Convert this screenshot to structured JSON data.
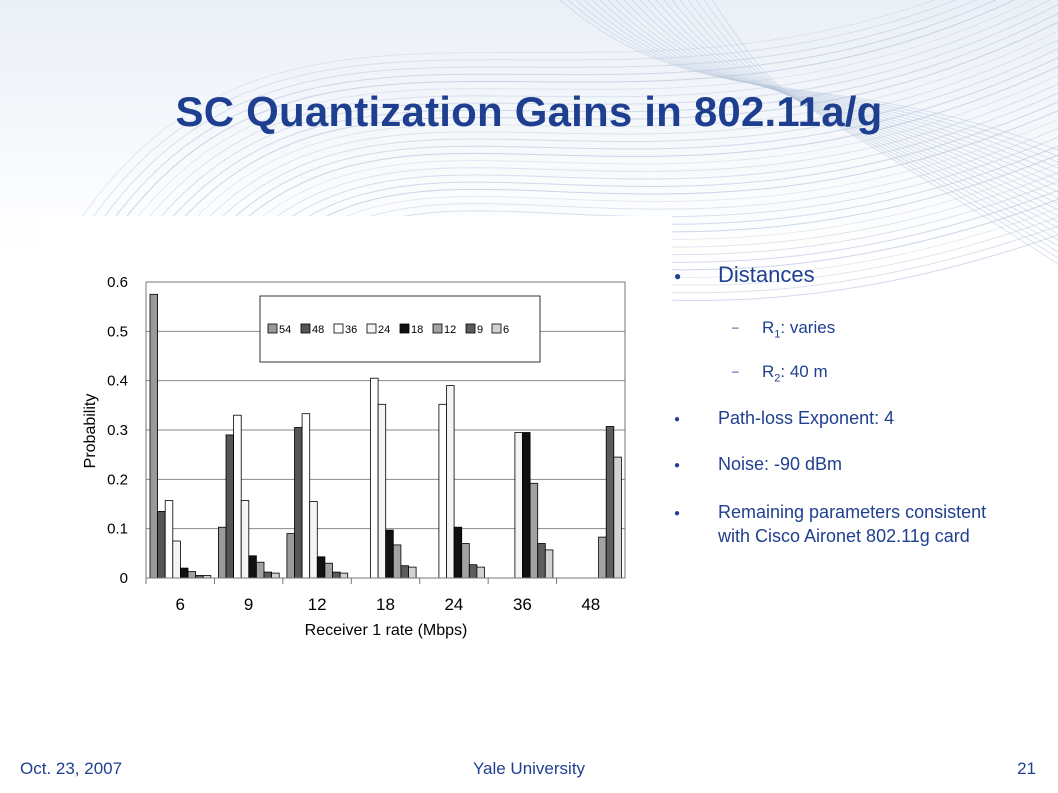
{
  "slide": {
    "title": "SC Quantization Gains in 802.11a/g",
    "footer_left": "Oct. 23, 2007",
    "footer_center": "Yale University",
    "footer_right": "21"
  },
  "bullets": {
    "distances": "Distances",
    "r1_label": "R",
    "r1_sub": "1",
    "r1_value": ": varies",
    "r2_label": "R",
    "r2_sub": "2",
    "r2_value": ": 40 m",
    "pathloss": "Path-loss Exponent: 4",
    "noise": "Noise: -90 dBm",
    "remaining": "Remaining parameters consistent with Cisco Aironet 802.11g card"
  },
  "chart_data": {
    "type": "bar",
    "categories": [
      "6",
      "9",
      "12",
      "18",
      "24",
      "36",
      "48"
    ],
    "xlabel": "Receiver 1 rate (Mbps)",
    "ylabel": "Probability",
    "ylim": [
      0,
      0.6
    ],
    "yticks": [
      "0",
      "0.1",
      "0.2",
      "0.3",
      "0.4",
      "0.5",
      "0.6"
    ],
    "grid": true,
    "legend_position": "top",
    "series": [
      {
        "name": "54",
        "color": "#9a9a9a",
        "values": [
          0.575,
          0.103,
          0.09,
          0,
          0,
          0,
          0
        ]
      },
      {
        "name": "48",
        "color": "#555555",
        "values": [
          0.135,
          0.29,
          0.305,
          0,
          0,
          0,
          0
        ]
      },
      {
        "name": "36",
        "color": "#ffffff",
        "values": [
          0.157,
          0.33,
          0.333,
          0.405,
          0.352,
          0,
          0
        ]
      },
      {
        "name": "24",
        "color": "#f4f4f4",
        "values": [
          0.075,
          0.157,
          0.155,
          0.352,
          0.39,
          0.295,
          0
        ]
      },
      {
        "name": "18",
        "color": "#111111",
        "values": [
          0.02,
          0.045,
          0.043,
          0.097,
          0.103,
          0.295,
          0
        ]
      },
      {
        "name": "12",
        "color": "#a2a2a2",
        "values": [
          0.013,
          0.032,
          0.03,
          0.067,
          0.07,
          0.192,
          0.083
        ]
      },
      {
        "name": "9",
        "color": "#5c5c5c",
        "values": [
          0.005,
          0.012,
          0.012,
          0.025,
          0.027,
          0.07,
          0.307
        ]
      },
      {
        "name": "6",
        "color": "#d2d2d2",
        "values": [
          0.005,
          0.01,
          0.01,
          0.022,
          0.022,
          0.057,
          0.245
        ]
      }
    ]
  }
}
